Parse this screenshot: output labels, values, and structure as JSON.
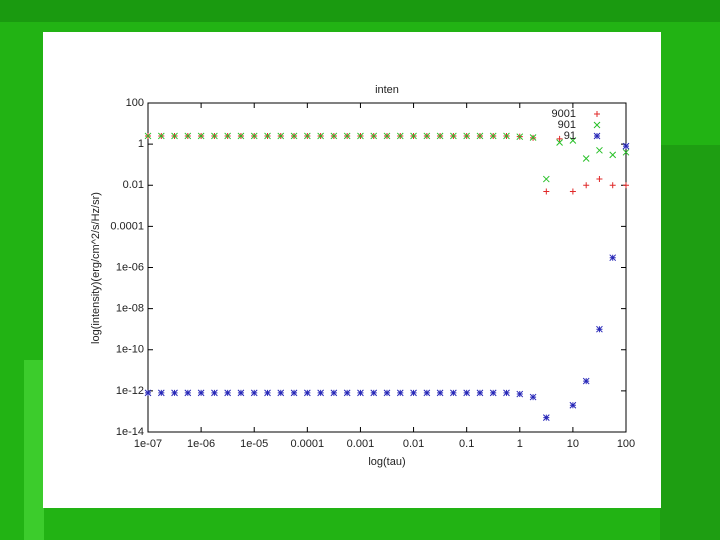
{
  "chart_data": {
    "type": "scatter",
    "title": "inten",
    "xlabel": "log(tau)",
    "ylabel": "log(intensity)(erg/cm^2/s/Hz/sr)",
    "xscale": "log",
    "yscale": "log",
    "legend": "upper right",
    "xlim": [
      1e-07,
      100
    ],
    "xticks": [
      {
        "value": 1e-07,
        "label": "1e-07"
      },
      {
        "value": 1e-06,
        "label": "1e-06"
      },
      {
        "value": 1e-05,
        "label": "1e-05"
      },
      0.0001,
      0.001,
      0.01,
      0.1,
      1,
      10,
      100
    ],
    "ylim": [
      1e-14,
      100
    ],
    "yticks": [
      1e-14,
      1e-12,
      1e-10,
      {
        "value": 1e-08,
        "label": "1e-08"
      },
      {
        "value": 1e-06,
        "label": "1e-06"
      },
      0.0001,
      0.01,
      1,
      100
    ],
    "x": [
      1e-07,
      1.78e-07,
      3.16e-07,
      5.62e-07,
      1e-06,
      1.78e-06,
      3.16e-06,
      5.62e-06,
      1e-05,
      1.78e-05,
      3.16e-05,
      5.62e-05,
      0.0001,
      0.000178,
      0.000316,
      0.000562,
      0.001,
      0.00178,
      0.00316,
      0.00562,
      0.01,
      0.0178,
      0.0316,
      0.0562,
      0.1,
      0.178,
      0.316,
      0.562,
      1,
      1.78,
      3.16,
      5.62,
      10,
      17.8,
      31.6,
      56.2,
      100
    ],
    "series": [
      {
        "name": "9001",
        "color": "#e02828",
        "marker": "plus",
        "values": [
          2.5,
          2.5,
          2.5,
          2.5,
          2.5,
          2.5,
          2.5,
          2.5,
          2.5,
          2.5,
          2.5,
          2.5,
          2.5,
          2.5,
          2.5,
          2.5,
          2.5,
          2.5,
          2.5,
          2.5,
          2.5,
          2.5,
          2.5,
          2.5,
          2.5,
          2.5,
          2.5,
          2.5,
          2.3,
          2.0,
          0.005,
          1.8,
          0.005,
          0.01,
          0.02,
          0.01,
          0.01
        ]
      },
      {
        "name": "901",
        "color": "#28c028",
        "marker": "cross",
        "values": [
          2.5,
          2.5,
          2.5,
          2.5,
          2.5,
          2.5,
          2.5,
          2.5,
          2.5,
          2.5,
          2.5,
          2.5,
          2.5,
          2.5,
          2.5,
          2.5,
          2.5,
          2.5,
          2.5,
          2.5,
          2.5,
          2.5,
          2.5,
          2.5,
          2.5,
          2.5,
          2.5,
          2.5,
          2.3,
          2.1,
          0.02,
          1.2,
          1.5,
          0.2,
          0.5,
          0.3,
          0.4
        ]
      },
      {
        "name": "91",
        "color": "#2828b8",
        "marker": "star",
        "values": [
          8e-13,
          8e-13,
          8e-13,
          8e-13,
          8e-13,
          8e-13,
          8e-13,
          8e-13,
          8e-13,
          8e-13,
          8e-13,
          8e-13,
          8e-13,
          8e-13,
          8e-13,
          8e-13,
          8e-13,
          8e-13,
          8e-13,
          8e-13,
          8e-13,
          8e-13,
          8e-13,
          8e-13,
          8e-13,
          8e-13,
          8e-13,
          8e-13,
          7e-13,
          5e-13,
          5e-14,
          null,
          2e-13,
          3e-12,
          1e-09,
          3e-06,
          0.8
        ]
      }
    ]
  }
}
